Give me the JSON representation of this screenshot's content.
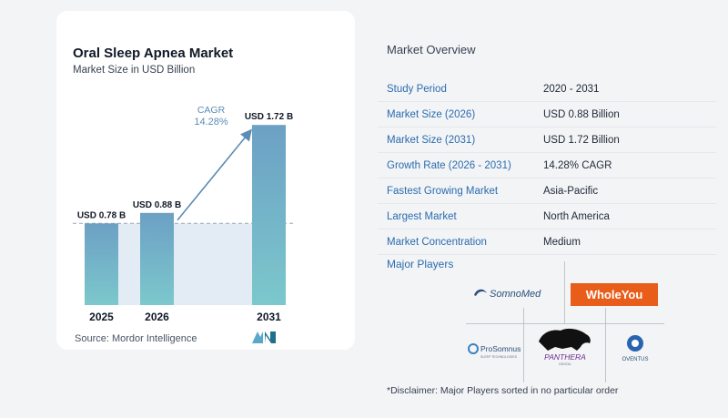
{
  "chart": {
    "title": "Oral Sleep Apnea Market",
    "subtitle": "Market Size in USD Billion",
    "source": "Source:  Mordor Intelligence",
    "cagr_label": "CAGR",
    "cagr_value": "14.28%",
    "colors": {
      "bar_top": "#6ca0c4",
      "bar_bottom": "#7cc8cc",
      "shade": "#e3ecf4",
      "arrow": "#5b8db5"
    }
  },
  "chart_data": {
    "type": "bar",
    "categories": [
      "2025",
      "2026",
      "2031"
    ],
    "values": [
      0.78,
      0.88,
      1.72
    ],
    "data_labels": [
      "USD 0.78 B",
      "USD 0.88 B",
      "USD 1.72 B"
    ],
    "title": "Oral Sleep Apnea Market",
    "subtitle": "Market Size in USD Billion",
    "xlabel": "",
    "ylabel": "",
    "ylim": [
      0,
      1.9
    ],
    "grid": false,
    "annotation": {
      "text": "CAGR 14.28%"
    }
  },
  "overview": {
    "title": "Market Overview",
    "rows": [
      {
        "label": "Study Period",
        "value": "2020 - 2031"
      },
      {
        "label": "Market Size (2026)",
        "value": "USD 0.88 Billion"
      },
      {
        "label": "Market Size (2031)",
        "value": "USD 1.72 Billion"
      },
      {
        "label": "Growth Rate (2026 - 2031)",
        "value": "14.28% CAGR"
      },
      {
        "label": "Fastest Growing Market",
        "value": "Asia-Pacific"
      },
      {
        "label": "Largest Market",
        "value": "North America"
      },
      {
        "label": "Market Concentration",
        "value": "Medium"
      }
    ]
  },
  "players": {
    "title": "Major Players",
    "logos": {
      "somnomed": "SomnoMed",
      "wholeyou": "WholeYou",
      "prosomnus": "ProSomnus",
      "prosomnus_tag": "SLEEP TECHNOLOGIES",
      "panthera": "PANTHERA",
      "panthera_tag": "DENTAL",
      "oventus": "OVENTUS"
    }
  },
  "disclaimer": "*Disclaimer: Major Players sorted in no particular order"
}
